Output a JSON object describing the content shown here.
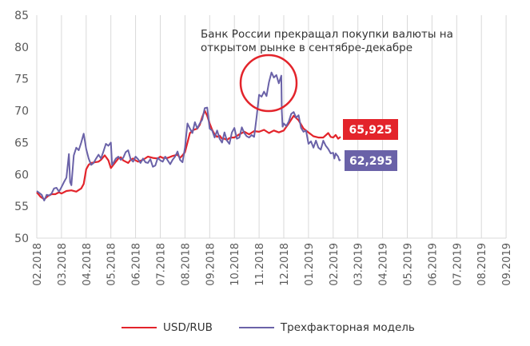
{
  "chart_data": {
    "type": "line",
    "y_axis": {
      "min": 50,
      "max": 85,
      "step": 5,
      "ticks": [
        "50",
        "55",
        "60",
        "65",
        "70",
        "75",
        "80",
        "85"
      ]
    },
    "x_axis": {
      "ticks": [
        "02.2018",
        "03.2018",
        "04.2018",
        "05.2018",
        "06.2018",
        "07.2018",
        "08.2018",
        "09.2018",
        "10.2018",
        "11.2018",
        "12.2018",
        "01.2019",
        "02.2019",
        "03.2019",
        "04.2019",
        "05.2019",
        "06.2019",
        "07.2019",
        "08.2019",
        "09.2019"
      ]
    },
    "grid": "vertical",
    "legend_position": "bottom",
    "annotation": {
      "lines": [
        "Банк России прекращал покупки валюты на",
        "открытом  рынке в сентябре-декабре"
      ]
    },
    "series": [
      {
        "name": "USD/RUB",
        "color": "#e3242b",
        "last_label": "65,925",
        "points": [
          [
            0.0,
            57.2
          ],
          [
            0.15,
            56.5
          ],
          [
            0.3,
            56.1
          ],
          [
            0.45,
            56.6
          ],
          [
            0.6,
            56.9
          ],
          [
            0.75,
            56.9
          ],
          [
            0.9,
            57.2
          ],
          [
            1.0,
            57.0
          ],
          [
            1.2,
            57.4
          ],
          [
            1.4,
            57.5
          ],
          [
            1.6,
            57.3
          ],
          [
            1.8,
            57.8
          ],
          [
            1.9,
            58.5
          ],
          [
            2.0,
            60.8
          ],
          [
            2.1,
            61.5
          ],
          [
            2.2,
            61.8
          ],
          [
            2.35,
            61.9
          ],
          [
            2.5,
            62.0
          ],
          [
            2.6,
            62.3
          ],
          [
            2.75,
            63.0
          ],
          [
            2.9,
            62.2
          ],
          [
            3.0,
            61.0
          ],
          [
            3.1,
            61.5
          ],
          [
            3.2,
            62.0
          ],
          [
            3.3,
            62.5
          ],
          [
            3.4,
            62.7
          ],
          [
            3.5,
            62.2
          ],
          [
            3.6,
            62.0
          ],
          [
            3.7,
            61.8
          ],
          [
            3.8,
            62.3
          ],
          [
            3.9,
            62.5
          ],
          [
            4.0,
            62.2
          ],
          [
            4.1,
            62.0
          ],
          [
            4.3,
            62.3
          ],
          [
            4.5,
            62.8
          ],
          [
            4.7,
            62.6
          ],
          [
            4.9,
            62.5
          ],
          [
            5.0,
            62.8
          ],
          [
            5.1,
            62.6
          ],
          [
            5.3,
            62.6
          ],
          [
            5.5,
            62.9
          ],
          [
            5.7,
            63.1
          ],
          [
            5.8,
            62.6
          ],
          [
            5.9,
            63.0
          ],
          [
            6.0,
            63.5
          ],
          [
            6.1,
            65.0
          ],
          [
            6.2,
            66.5
          ],
          [
            6.35,
            67.0
          ],
          [
            6.5,
            67.2
          ],
          [
            6.6,
            67.8
          ],
          [
            6.7,
            69.0
          ],
          [
            6.8,
            70.0
          ],
          [
            6.9,
            69.2
          ],
          [
            7.0,
            68.0
          ],
          [
            7.1,
            67.0
          ],
          [
            7.2,
            66.3
          ],
          [
            7.3,
            65.9
          ],
          [
            7.4,
            66.1
          ],
          [
            7.5,
            65.6
          ],
          [
            7.6,
            65.6
          ],
          [
            7.7,
            65.4
          ],
          [
            7.8,
            65.7
          ],
          [
            7.9,
            65.8
          ],
          [
            8.0,
            65.8
          ],
          [
            8.2,
            66.3
          ],
          [
            8.4,
            66.7
          ],
          [
            8.6,
            66.3
          ],
          [
            8.8,
            66.8
          ],
          [
            9.0,
            66.7
          ],
          [
            9.2,
            67.0
          ],
          [
            9.4,
            66.5
          ],
          [
            9.6,
            66.9
          ],
          [
            9.8,
            66.6
          ],
          [
            10.0,
            66.9
          ],
          [
            10.2,
            68.0
          ],
          [
            10.4,
            69.2
          ],
          [
            10.6,
            68.5
          ],
          [
            10.8,
            67.2
          ],
          [
            11.0,
            66.6
          ],
          [
            11.2,
            66.0
          ],
          [
            11.4,
            65.8
          ],
          [
            11.6,
            65.8
          ],
          [
            11.8,
            66.5
          ],
          [
            11.9,
            65.9
          ],
          [
            12.0,
            65.8
          ],
          [
            12.1,
            66.2
          ],
          [
            12.2,
            65.6
          ],
          [
            12.3,
            65.9
          ]
        ]
      },
      {
        "name": "Трехфакторная модель",
        "color": "#6a62a8",
        "last_label": "62,295",
        "points": [
          [
            0.0,
            57.4
          ],
          [
            0.1,
            57.1
          ],
          [
            0.2,
            56.8
          ],
          [
            0.3,
            55.9
          ],
          [
            0.4,
            56.8
          ],
          [
            0.5,
            56.7
          ],
          [
            0.6,
            57.0
          ],
          [
            0.7,
            57.8
          ],
          [
            0.8,
            57.9
          ],
          [
            0.9,
            57.3
          ],
          [
            1.0,
            58.0
          ],
          [
            1.1,
            58.8
          ],
          [
            1.2,
            59.5
          ],
          [
            1.3,
            63.2
          ],
          [
            1.35,
            58.8
          ],
          [
            1.4,
            58.3
          ],
          [
            1.5,
            63.0
          ],
          [
            1.6,
            64.2
          ],
          [
            1.7,
            63.8
          ],
          [
            1.8,
            65.0
          ],
          [
            1.9,
            66.4
          ],
          [
            2.0,
            64.0
          ],
          [
            2.1,
            62.5
          ],
          [
            2.2,
            61.5
          ],
          [
            2.3,
            61.8
          ],
          [
            2.4,
            62.5
          ],
          [
            2.5,
            63.1
          ],
          [
            2.6,
            62.5
          ],
          [
            2.7,
            63.6
          ],
          [
            2.8,
            64.8
          ],
          [
            2.9,
            64.5
          ],
          [
            3.0,
            65.0
          ],
          [
            3.05,
            61.5
          ],
          [
            3.1,
            61.8
          ],
          [
            3.2,
            62.5
          ],
          [
            3.3,
            62.8
          ],
          [
            3.4,
            62.3
          ],
          [
            3.5,
            62.6
          ],
          [
            3.6,
            63.5
          ],
          [
            3.7,
            63.8
          ],
          [
            3.8,
            62.4
          ],
          [
            3.9,
            62.0
          ],
          [
            4.0,
            62.8
          ],
          [
            4.1,
            62.4
          ],
          [
            4.2,
            61.8
          ],
          [
            4.3,
            62.5
          ],
          [
            4.4,
            61.9
          ],
          [
            4.5,
            61.8
          ],
          [
            4.6,
            62.4
          ],
          [
            4.7,
            61.2
          ],
          [
            4.8,
            61.4
          ],
          [
            4.9,
            62.6
          ],
          [
            5.0,
            62.2
          ],
          [
            5.1,
            62.0
          ],
          [
            5.2,
            62.8
          ],
          [
            5.3,
            62.2
          ],
          [
            5.4,
            61.6
          ],
          [
            5.5,
            62.3
          ],
          [
            5.6,
            62.8
          ],
          [
            5.7,
            63.6
          ],
          [
            5.8,
            62.3
          ],
          [
            5.9,
            61.9
          ],
          [
            6.0,
            64.2
          ],
          [
            6.1,
            68.0
          ],
          [
            6.2,
            67.2
          ],
          [
            6.3,
            66.5
          ],
          [
            6.4,
            68.2
          ],
          [
            6.5,
            67.2
          ],
          [
            6.6,
            68.0
          ],
          [
            6.7,
            68.6
          ],
          [
            6.8,
            70.4
          ],
          [
            6.9,
            70.5
          ],
          [
            7.0,
            67.2
          ],
          [
            7.1,
            66.9
          ],
          [
            7.2,
            65.8
          ],
          [
            7.3,
            66.9
          ],
          [
            7.4,
            65.6
          ],
          [
            7.5,
            65.0
          ],
          [
            7.6,
            66.6
          ],
          [
            7.7,
            65.3
          ],
          [
            7.8,
            64.8
          ],
          [
            7.9,
            66.6
          ],
          [
            8.0,
            67.3
          ],
          [
            8.1,
            65.6
          ],
          [
            8.2,
            65.8
          ],
          [
            8.3,
            67.4
          ],
          [
            8.4,
            66.5
          ],
          [
            8.5,
            66.0
          ],
          [
            8.6,
            65.8
          ],
          [
            8.7,
            66.2
          ],
          [
            8.8,
            65.9
          ],
          [
            8.9,
            69.0
          ],
          [
            9.0,
            72.5
          ],
          [
            9.1,
            72.2
          ],
          [
            9.2,
            73.0
          ],
          [
            9.3,
            72.3
          ],
          [
            9.4,
            74.5
          ],
          [
            9.5,
            76.0
          ],
          [
            9.6,
            75.2
          ],
          [
            9.7,
            75.6
          ],
          [
            9.8,
            74.3
          ],
          [
            9.9,
            75.5
          ],
          [
            9.92,
            70.0
          ],
          [
            9.95,
            67.5
          ],
          [
            10.0,
            68.0
          ],
          [
            10.1,
            67.6
          ],
          [
            10.2,
            68.3
          ],
          [
            10.3,
            69.5
          ],
          [
            10.4,
            69.8
          ],
          [
            10.5,
            68.9
          ],
          [
            10.6,
            69.3
          ],
          [
            10.7,
            67.3
          ],
          [
            10.8,
            66.7
          ],
          [
            10.9,
            66.9
          ],
          [
            11.0,
            64.8
          ],
          [
            11.1,
            65.2
          ],
          [
            11.2,
            64.2
          ],
          [
            11.3,
            65.3
          ],
          [
            11.4,
            64.2
          ],
          [
            11.5,
            63.9
          ],
          [
            11.6,
            65.3
          ],
          [
            11.7,
            64.5
          ],
          [
            11.8,
            64.0
          ],
          [
            11.9,
            63.3
          ],
          [
            12.0,
            63.4
          ],
          [
            12.05,
            62.5
          ],
          [
            12.1,
            63.3
          ],
          [
            12.2,
            62.8
          ],
          [
            12.25,
            62.2
          ],
          [
            12.3,
            62.3
          ]
        ]
      }
    ]
  }
}
